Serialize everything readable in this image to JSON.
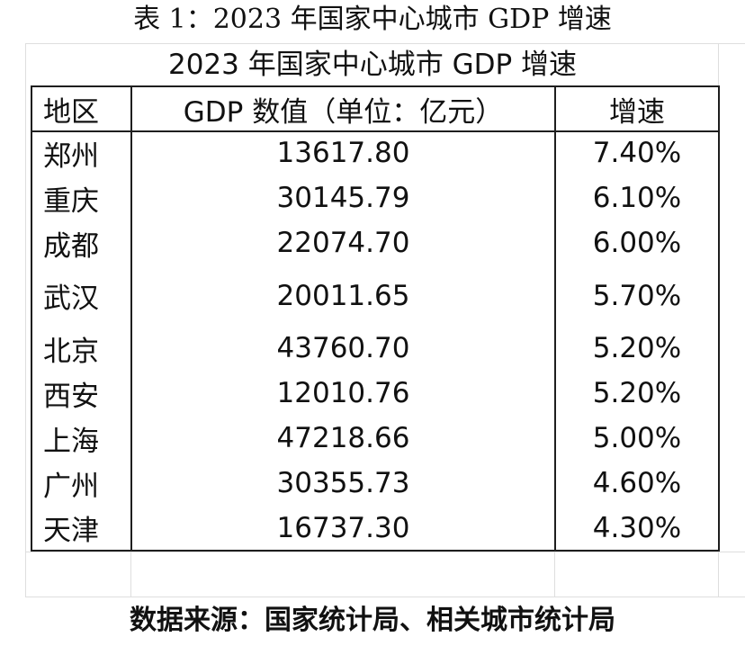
{
  "page": {
    "title": "表 1：2023 年国家中心城市 GDP 增速",
    "caption": "2023 年国家中心城市 GDP 增速",
    "source": "数据来源：国家统计局、相关城市统计局"
  },
  "table": {
    "headers": [
      "地区",
      "GDP 数值（单位：亿元）",
      "增速"
    ],
    "rows": [
      [
        "郑州",
        "13617.80",
        "7.40%"
      ],
      [
        "重庆",
        "30145.79",
        "6.10%"
      ],
      [
        "成都",
        "22074.70",
        "6.00%"
      ],
      [
        "武汉",
        "20011.65",
        "5.70%"
      ],
      [
        "北京",
        "43760.70",
        "5.20%"
      ],
      [
        "西安",
        "12010.76",
        "5.20%"
      ],
      [
        "上海",
        "47218.66",
        "5.00%"
      ],
      [
        "广州",
        "30355.73",
        "4.60%"
      ],
      [
        "天津",
        "16737.30",
        "4.30%"
      ]
    ]
  },
  "colors": {
    "border": "#1e1e1e",
    "gridline": "#dedede",
    "background": "#ffffff"
  }
}
